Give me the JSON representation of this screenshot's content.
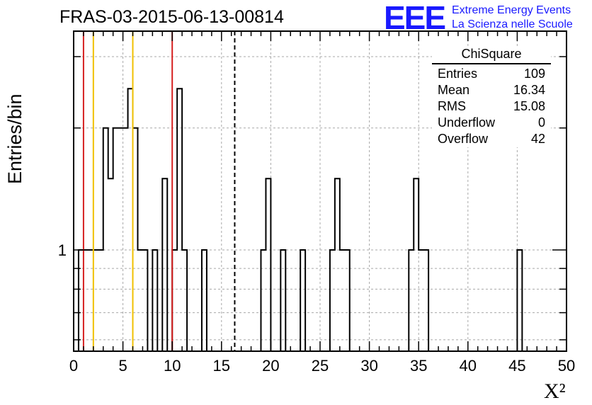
{
  "header": {
    "run_title": "FRAS-03-2015-06-13-00814"
  },
  "logo": {
    "mark": "EEE",
    "line1": "Extreme Energy Events",
    "line2": "La Scienza nelle Scuole",
    "color": "#1a1aff"
  },
  "stats_box": {
    "title": "ChiSquare",
    "rows": [
      {
        "label": "Entries",
        "value": "109"
      },
      {
        "label": "Mean",
        "value": "16.34"
      },
      {
        "label": "RMS",
        "value": "15.08"
      },
      {
        "label": "Underflow",
        "value": "0"
      },
      {
        "label": "Overflow",
        "value": "42"
      }
    ]
  },
  "chart_data": {
    "type": "histogram",
    "xlabel": "X²",
    "ylabel": "Entries/bin",
    "xlim": [
      0,
      50
    ],
    "ylog": true,
    "ylim_log10": [
      -0.25,
      0.54
    ],
    "grid": true,
    "x_ticks": [
      "0",
      "5",
      "10",
      "15",
      "20",
      "25",
      "30",
      "35",
      "40",
      "45",
      "50"
    ],
    "y_ticks": [
      "1"
    ],
    "bins": {
      "start": 0,
      "width": 0.5
    },
    "values": [
      0,
      1,
      1,
      1,
      1,
      1,
      2,
      1.5,
      2,
      2,
      2,
      2.5,
      2,
      1,
      1,
      0,
      1,
      0,
      1.5,
      0,
      1,
      2.5,
      1,
      0,
      0,
      0,
      1,
      0,
      0,
      0,
      0,
      0,
      0,
      0,
      0,
      0,
      0,
      0,
      1,
      1.5,
      0,
      0,
      1,
      0,
      0,
      0,
      1,
      0,
      0,
      0,
      0,
      0,
      1,
      1.5,
      1,
      1,
      0,
      0,
      0,
      0,
      0,
      0,
      0,
      0,
      0,
      0,
      0,
      0,
      1,
      1.5,
      1,
      1,
      0,
      0,
      0,
      0,
      0,
      0,
      0,
      0,
      0,
      0,
      0,
      0,
      0,
      0,
      0,
      0,
      0,
      0,
      1,
      0,
      0,
      0,
      0,
      0,
      0,
      0,
      0,
      0
    ],
    "vertical_lines": [
      {
        "x": 1,
        "color": "#d62020",
        "style": "solid"
      },
      {
        "x": 2,
        "color": "#f0c000",
        "style": "solid"
      },
      {
        "x": 6,
        "color": "#f0c000",
        "style": "solid"
      },
      {
        "x": 10,
        "color": "#d62020",
        "style": "solid"
      },
      {
        "x": 16.34,
        "color": "#000000",
        "style": "dashed"
      }
    ]
  }
}
